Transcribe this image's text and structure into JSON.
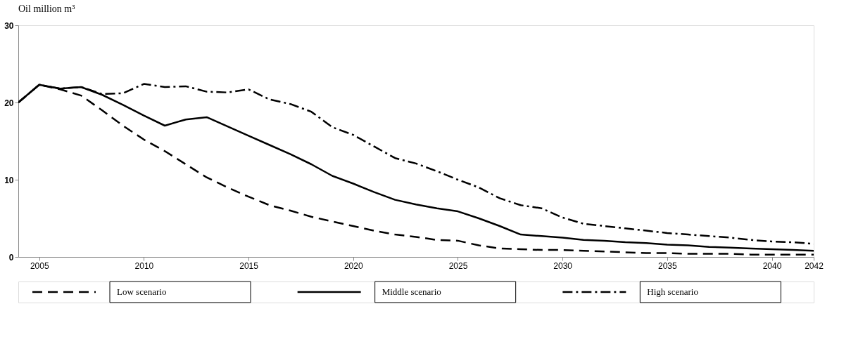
{
  "chart_data": {
    "type": "line",
    "ylabel": "Oil million m³",
    "x": [
      2004,
      2005,
      2006,
      2007,
      2008,
      2009,
      2010,
      2011,
      2012,
      2013,
      2014,
      2015,
      2016,
      2017,
      2018,
      2019,
      2020,
      2021,
      2022,
      2023,
      2024,
      2025,
      2026,
      2027,
      2028,
      2029,
      2030,
      2031,
      2032,
      2033,
      2034,
      2035,
      2036,
      2037,
      2038,
      2039,
      2040,
      2041,
      2042
    ],
    "xlim": [
      2004,
      2042
    ],
    "xticks": [
      2005,
      2010,
      2015,
      2020,
      2025,
      2030,
      2035,
      2040,
      2042
    ],
    "ylim": [
      0,
      30
    ],
    "yticks": [
      0,
      10,
      20,
      30
    ],
    "grid": false,
    "legend": "bottom",
    "marker": "none",
    "series": [
      {
        "name": "Low scenario",
        "color": "#000000",
        "line_style": "dashed",
        "values": [
          20,
          22.3,
          21.7,
          20.9,
          19,
          17,
          15.2,
          13.7,
          12,
          10.3,
          9,
          7.8,
          6.7,
          6,
          5.2,
          4.6,
          4,
          3.4,
          2.9,
          2.6,
          2.2,
          2.1,
          1.5,
          1.1,
          1,
          0.9,
          0.9,
          0.8,
          0.7,
          0.6,
          0.5,
          0.5,
          0.4,
          0.4,
          0.4,
          0.3,
          0.3,
          0.3,
          0.3
        ]
      },
      {
        "name": "Middle scenario",
        "color": "#000000",
        "line_style": "solid",
        "values": [
          20,
          22.3,
          21.8,
          22,
          21,
          19.7,
          18.3,
          17,
          17.8,
          18.1,
          16.9,
          15.7,
          14.5,
          13.3,
          12,
          10.5,
          9.5,
          8.4,
          7.4,
          6.8,
          6.3,
          5.9,
          5,
          4,
          2.9,
          2.7,
          2.5,
          2.2,
          2.1,
          1.9,
          1.8,
          1.6,
          1.5,
          1.3,
          1.2,
          1.1,
          1,
          0.9,
          0.8
        ]
      },
      {
        "name": "High scenario",
        "color": "#000000",
        "line_style": "dashdot",
        "values": [
          20,
          22.3,
          21.8,
          22,
          21.1,
          21.2,
          22.4,
          22,
          22.1,
          21.4,
          21.3,
          21.7,
          20.4,
          19.8,
          18.8,
          16.8,
          15.8,
          14.3,
          12.8,
          12.1,
          11.1,
          10,
          9,
          7.6,
          6.7,
          6.3,
          5.1,
          4.3,
          4,
          3.7,
          3.4,
          3.1,
          2.9,
          2.7,
          2.5,
          2.2,
          2,
          1.9,
          1.7
        ]
      }
    ]
  }
}
